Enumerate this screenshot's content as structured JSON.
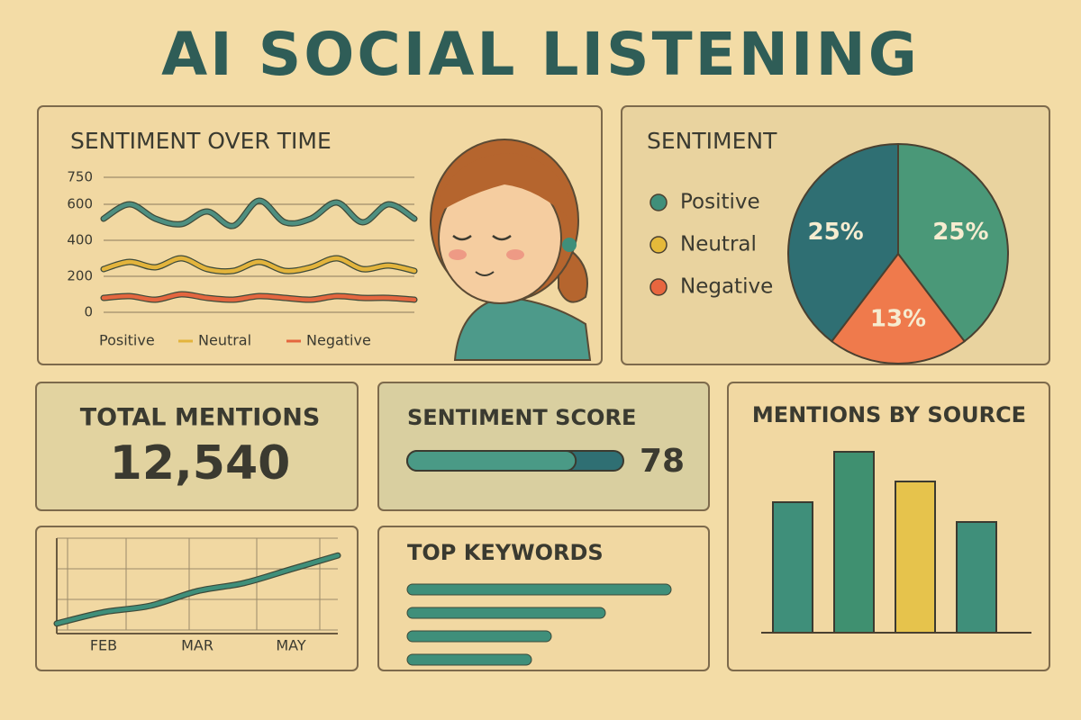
{
  "title": "AI SOCIAL LISTENING",
  "total_mentions": {
    "label": "TOTAL MENTIONS",
    "value": "12,540"
  },
  "chart_data": [
    {
      "type": "line",
      "title": "SENTIMENT OVER TIME",
      "categories": [
        null,
        null,
        null,
        null,
        null,
        null,
        null,
        null,
        null,
        null,
        null,
        null,
        null
      ],
      "ylim": [
        0,
        750
      ],
      "yticks": [
        0,
        200,
        400,
        600,
        750
      ],
      "legend": "bottom",
      "series": [
        {
          "name": "Positive",
          "color": "#4e8f80",
          "values": [
            520,
            600,
            520,
            490,
            560,
            480,
            620,
            500,
            520,
            610,
            500,
            600,
            520
          ]
        },
        {
          "name": "Neutral",
          "color": "#e3b43c",
          "values": [
            240,
            280,
            250,
            300,
            240,
            230,
            280,
            230,
            250,
            300,
            240,
            260,
            230
          ]
        },
        {
          "name": "Negative",
          "color": "#e4663f",
          "values": [
            80,
            90,
            70,
            100,
            80,
            70,
            90,
            80,
            70,
            90,
            80,
            80,
            70
          ]
        }
      ]
    },
    {
      "type": "pie",
      "title": "SENTIMENT",
      "legend_items": [
        {
          "name": "Positive",
          "color": "#3f8f7a"
        },
        {
          "name": "Neutral",
          "color": "#e5b93a"
        },
        {
          "name": "Negative",
          "color": "#e8663f"
        }
      ],
      "values": [
        25,
        13,
        25
      ],
      "value_labels": [
        "25%",
        "13%",
        "25%"
      ],
      "colors": [
        "#4a9878",
        "#ef7a4c",
        "#2f6f73"
      ]
    },
    {
      "type": "gauge",
      "title": "SENTIMENT SCORE",
      "value": 78,
      "xlim": [
        0,
        100
      ],
      "color": "#4a9a86"
    },
    {
      "type": "line",
      "categories": [
        null,
        "FEB",
        null,
        "MAR",
        null,
        "MAY",
        null
      ],
      "ylim": [
        0,
        100
      ],
      "grid": true,
      "series": [
        {
          "color": "#3f8f7a",
          "values": [
            8,
            22,
            30,
            48,
            58,
            75,
            92
          ]
        }
      ]
    },
    {
      "type": "bar",
      "title": "TOP KEYWORDS",
      "horizontal": true,
      "categories": [
        null,
        null,
        null,
        null
      ],
      "values": [
        293,
        220,
        160,
        138
      ],
      "xlim": [
        0,
        300
      ],
      "color": "#3f8f7a"
    },
    {
      "type": "bar",
      "title": "MENTIONS BY SOURCE",
      "categories": [
        null,
        null,
        null,
        null
      ],
      "values": [
        145,
        201,
        168,
        123
      ],
      "ylim": [
        0,
        220
      ],
      "colors": [
        "#3f8f7a",
        "#3f9070",
        "#e6c34c",
        "#3f8f7a"
      ]
    }
  ]
}
